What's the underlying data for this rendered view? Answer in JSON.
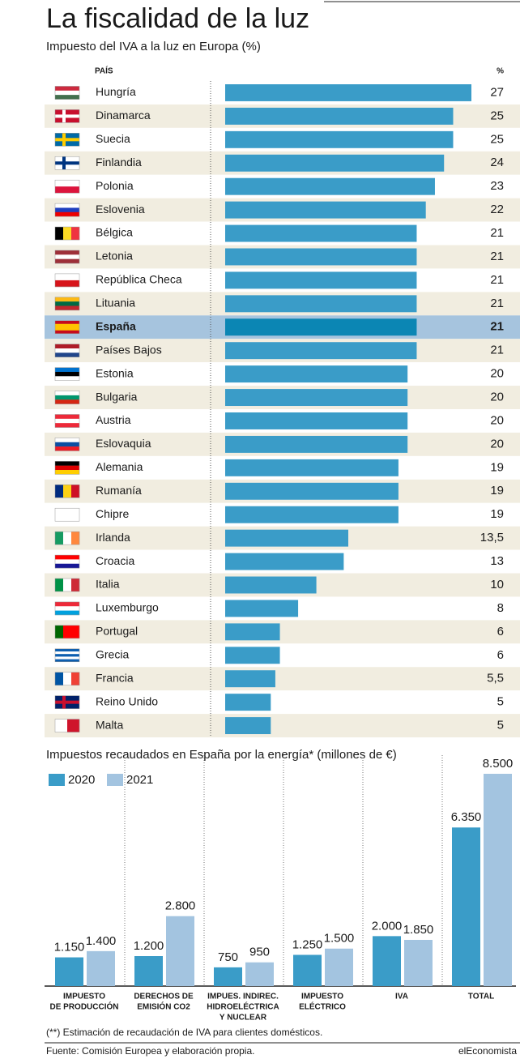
{
  "header": {
    "title": "La fiscalidad de la luz"
  },
  "chart_data": [
    {
      "type": "hbar",
      "title": "Impuesto del IVA a la luz en Europa (%)",
      "category_label": "PAÍS",
      "value_label": "%",
      "categories": [
        "Hungría",
        "Dinamarca",
        "Suecia",
        "Finlandia",
        "Polonia",
        "Eslovenia",
        "Bélgica",
        "Letonia",
        "República Checa",
        "Lituania",
        "España",
        "Países Bajos",
        "Estonia",
        "Bulgaria",
        "Austria",
        "Eslovaquia",
        "Alemania",
        "Rumanía",
        "Chipre",
        "Irlanda",
        "Croacia",
        "Italia",
        "Luxemburgo",
        "Portugal",
        "Grecia",
        "Francia",
        "Reino Unido",
        "Malta"
      ],
      "values": [
        27,
        25,
        25,
        24,
        23,
        22,
        21,
        21,
        21,
        21,
        21,
        21,
        20,
        20,
        20,
        20,
        19,
        19,
        19,
        13.5,
        13,
        10,
        8,
        6,
        6,
        5.5,
        5,
        5
      ],
      "value_labels": [
        "27",
        "25",
        "25",
        "24",
        "23",
        "22",
        "21",
        "21",
        "21",
        "21",
        "21",
        "21",
        "20",
        "20",
        "20",
        "20",
        "19",
        "19",
        "19",
        "13,5",
        "13",
        "10",
        "8",
        "6",
        "6",
        "5,5",
        "5",
        "5"
      ],
      "color": "#3a9cc8",
      "highlight_index": 10,
      "highlight_color": "#0b86b4",
      "xlim": [
        0,
        27
      ]
    },
    {
      "type": "grouped_bar",
      "title": "Impuestos recaudados en España por la energía* (millones de €)",
      "categories": [
        [
          "IMPUESTO",
          "DE PRODUCCIÓN"
        ],
        [
          "DERECHOS DE",
          "EMISIÓN CO2"
        ],
        [
          "IMPUES. INDIREC.",
          "HIDROELÉCTRICA",
          "Y NUCLEAR"
        ],
        [
          "IMPUESTO",
          "ELÉCTRICO"
        ],
        [
          "IVA"
        ],
        [
          "TOTAL"
        ]
      ],
      "series": [
        {
          "name": "2020",
          "color": "#3a9cc8",
          "values": [
            1150,
            1200,
            750,
            1250,
            2000,
            6350
          ],
          "value_labels": [
            "1.150",
            "1.200",
            "750",
            "1.250",
            "2.000",
            "6.350"
          ]
        },
        {
          "name": "2021",
          "color": "#a3c4e0",
          "values": [
            1400,
            2800,
            950,
            1500,
            1850,
            8500
          ],
          "value_labels": [
            "1.400",
            "2.800",
            "950",
            "1.500",
            "1.850",
            "8.500"
          ]
        }
      ],
      "ylim": [
        0,
        8500
      ]
    }
  ],
  "footnote": "(**) Estimación de recaudación de IVA para clientes domésticos.",
  "footer": {
    "source": "Fuente: Comisión Europea y elaboración propia.",
    "brand": "elEconomista"
  }
}
